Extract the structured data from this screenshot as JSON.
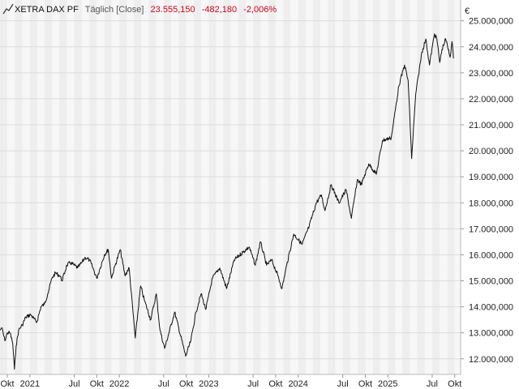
{
  "header": {
    "symbol_icon": "line-chart-icon",
    "symbol": "XETRA DAX PF",
    "interval": "Täglich [Close]",
    "last": "23.555,150",
    "change": "-482,180",
    "change_pct": "-2,006%"
  },
  "colors": {
    "background": "#ffffff",
    "band_light": "#f7f7f7",
    "band_dark": "#eeeeee",
    "grid": "#dcdcdc",
    "line": "#111111",
    "negative": "#d0021b",
    "legend_gray": "#555555"
  },
  "chart_data": {
    "type": "line",
    "title": "",
    "xlabel": "",
    "ylabel": "",
    "currency_label": "€",
    "grid": true,
    "xlim": [
      "2020-09-01",
      "2025-10-25"
    ],
    "ylim": [
      11400000,
      25800000
    ],
    "y_ticks": [
      12000000,
      13000000,
      14000000,
      15000000,
      16000000,
      17000000,
      18000000,
      19000000,
      20000000,
      21000000,
      22000000,
      23000000,
      24000000,
      25000000
    ],
    "y_tick_labels": [
      "12.000,000",
      "13.000,000",
      "14.000,000",
      "15.000,000",
      "16.000,000",
      "17.000,000",
      "18.000,000",
      "19.000,000",
      "20.000,000",
      "21.000,000",
      "22.000,000",
      "23.000,000",
      "24.000,000",
      "25.000,000"
    ],
    "x_ticks": [
      {
        "label": "Okt",
        "date": "2020-10-01"
      },
      {
        "label": "2021",
        "date": "2021-01-01"
      },
      {
        "label": "Jul",
        "date": "2021-07-01"
      },
      {
        "label": "Okt",
        "date": "2021-10-01"
      },
      {
        "label": "2022",
        "date": "2022-01-01"
      },
      {
        "label": "Jul",
        "date": "2022-07-01"
      },
      {
        "label": "Okt",
        "date": "2022-10-01"
      },
      {
        "label": "2023",
        "date": "2023-01-01"
      },
      {
        "label": "Jul",
        "date": "2023-07-01"
      },
      {
        "label": "Okt",
        "date": "2023-10-01"
      },
      {
        "label": "2024",
        "date": "2024-01-01"
      },
      {
        "label": "Jul",
        "date": "2024-07-01"
      },
      {
        "label": "Okt",
        "date": "2024-10-01"
      },
      {
        "label": "2025",
        "date": "2025-01-01"
      },
      {
        "label": "Jul",
        "date": "2025-07-01"
      },
      {
        "label": "Okt",
        "date": "2025-10-01"
      }
    ],
    "series": [
      {
        "values": [
          [
            "2020-09-01",
            13100000
          ],
          [
            "2020-09-08",
            13200000
          ],
          [
            "2020-09-21",
            12700000
          ],
          [
            "2020-10-01",
            13000000
          ],
          [
            "2020-10-12",
            13000000
          ],
          [
            "2020-10-23",
            12600000
          ],
          [
            "2020-10-30",
            11600000
          ],
          [
            "2020-11-06",
            12500000
          ],
          [
            "2020-11-16",
            13100000
          ],
          [
            "2020-12-01",
            13300000
          ],
          [
            "2020-12-15",
            13600000
          ],
          [
            "2021-01-04",
            13700000
          ],
          [
            "2021-01-29",
            13400000
          ],
          [
            "2021-02-15",
            14000000
          ],
          [
            "2021-03-01",
            14100000
          ],
          [
            "2021-03-15",
            14500000
          ],
          [
            "2021-04-01",
            15100000
          ],
          [
            "2021-04-15",
            15300000
          ],
          [
            "2021-05-03",
            15200000
          ],
          [
            "2021-05-12",
            15000000
          ],
          [
            "2021-06-01",
            15600000
          ],
          [
            "2021-06-15",
            15700000
          ],
          [
            "2021-07-01",
            15600000
          ],
          [
            "2021-07-15",
            15500000
          ],
          [
            "2021-08-01",
            15700000
          ],
          [
            "2021-08-15",
            15900000
          ],
          [
            "2021-09-01",
            15800000
          ],
          [
            "2021-09-15",
            15500000
          ],
          [
            "2021-10-01",
            15100000
          ],
          [
            "2021-10-15",
            15500000
          ],
          [
            "2021-11-01",
            16000000
          ],
          [
            "2021-11-17",
            16200000
          ],
          [
            "2021-11-30",
            15100000
          ],
          [
            "2021-12-15",
            15600000
          ],
          [
            "2022-01-05",
            16200000
          ],
          [
            "2022-01-24",
            15200000
          ],
          [
            "2022-02-10",
            15500000
          ],
          [
            "2022-02-24",
            14000000
          ],
          [
            "2022-03-07",
            12800000
          ],
          [
            "2022-03-29",
            14800000
          ],
          [
            "2022-04-15",
            14200000
          ],
          [
            "2022-05-09",
            13500000
          ],
          [
            "2022-06-01",
            14500000
          ],
          [
            "2022-06-16",
            13100000
          ],
          [
            "2022-07-05",
            12400000
          ],
          [
            "2022-08-15",
            13800000
          ],
          [
            "2022-09-29",
            12100000
          ],
          [
            "2022-10-20",
            12700000
          ],
          [
            "2022-11-10",
            13800000
          ],
          [
            "2022-12-01",
            14500000
          ],
          [
            "2022-12-20",
            13900000
          ],
          [
            "2023-01-16",
            15100000
          ],
          [
            "2023-02-15",
            15500000
          ],
          [
            "2023-03-15",
            14700000
          ],
          [
            "2023-04-15",
            15800000
          ],
          [
            "2023-05-20",
            16100000
          ],
          [
            "2023-06-15",
            16300000
          ],
          [
            "2023-07-10",
            15600000
          ],
          [
            "2023-07-31",
            16500000
          ],
          [
            "2023-08-25",
            15600000
          ],
          [
            "2023-09-15",
            15800000
          ],
          [
            "2023-10-10",
            15200000
          ],
          [
            "2023-10-27",
            14700000
          ],
          [
            "2023-11-15",
            15600000
          ],
          [
            "2023-12-14",
            16800000
          ],
          [
            "2024-01-17",
            16400000
          ],
          [
            "2024-02-15",
            17100000
          ],
          [
            "2024-03-15",
            18000000
          ],
          [
            "2024-04-05",
            18300000
          ],
          [
            "2024-04-19",
            17700000
          ],
          [
            "2024-05-15",
            18700000
          ],
          [
            "2024-06-15",
            18000000
          ],
          [
            "2024-07-15",
            18500000
          ],
          [
            "2024-08-05",
            17400000
          ],
          [
            "2024-08-30",
            18900000
          ],
          [
            "2024-09-15",
            18700000
          ],
          [
            "2024-10-15",
            19500000
          ],
          [
            "2024-11-15",
            19100000
          ],
          [
            "2024-12-10",
            20400000
          ],
          [
            "2025-01-15",
            20500000
          ],
          [
            "2025-02-15",
            22500000
          ],
          [
            "2025-03-10",
            23300000
          ],
          [
            "2025-03-25",
            22700000
          ],
          [
            "2025-04-08",
            19700000
          ],
          [
            "2025-04-25",
            22200000
          ],
          [
            "2025-05-20",
            23800000
          ],
          [
            "2025-06-05",
            24300000
          ],
          [
            "2025-06-20",
            23300000
          ],
          [
            "2025-07-10",
            24500000
          ],
          [
            "2025-07-20",
            24300000
          ],
          [
            "2025-08-01",
            23400000
          ],
          [
            "2025-08-10",
            23900000
          ],
          [
            "2025-08-25",
            24300000
          ],
          [
            "2025-09-02",
            24000000
          ],
          [
            "2025-09-12",
            23600000
          ],
          [
            "2025-09-20",
            24200000
          ],
          [
            "2025-09-26",
            23555150
          ]
        ]
      }
    ]
  }
}
